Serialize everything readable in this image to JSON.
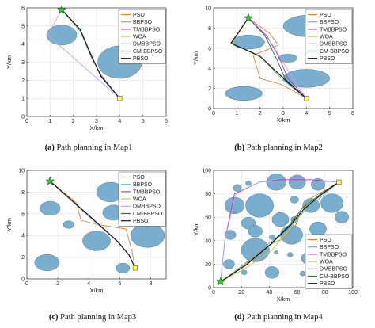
{
  "legend_labels": [
    "PSO",
    "BBPSO",
    "TMBBPSO",
    "WOA",
    "DMBBPSO",
    "CM-BBPSO",
    "PBSO"
  ],
  "colors": {
    "PSO": "#d9823b",
    "BBPSO": "#5ab4c7",
    "TMBBPSO": "#b13bbf",
    "WOA": "#c5c84a",
    "DMBBPSO": "#b9a9e3",
    "CM-BBPSO": "#356b3c",
    "PBSO": "#111111",
    "obstacle": "#7aaecf",
    "obstacle_edge": "#4f7c99",
    "start": "#33cc33",
    "goal": "#ffff55"
  },
  "start_icon": "green-star",
  "goal_icon": "yellow-square",
  "chart_data": [
    {
      "type": "line",
      "caption_letter": "(a)",
      "caption_text": " Path planning in Map1",
      "xlabel": "X/km",
      "ylabel": "Y/km",
      "xlim": [
        0,
        6
      ],
      "ylim": [
        0,
        6
      ],
      "xticks": [
        0,
        1,
        2,
        3,
        4,
        5,
        6
      ],
      "yticks": [
        0,
        1,
        2,
        3,
        4,
        5,
        6
      ],
      "grid": true,
      "legend": "top-right",
      "start": [
        1.5,
        5.9
      ],
      "goal": [
        4,
        1
      ],
      "obstacles": [
        {
          "cx": 1.5,
          "cy": 4.5,
          "rx": 0.65,
          "ry": 0.55
        },
        {
          "cx": 4.0,
          "cy": 3.0,
          "rx": 0.95,
          "ry": 0.9
        }
      ],
      "series": [
        {
          "name": "PSO",
          "points": [
            [
              1.5,
              5.9
            ],
            [
              2.3,
              4.8
            ],
            [
              2.8,
              3.3
            ],
            [
              3.2,
              2.2
            ],
            [
              4,
              1
            ]
          ]
        },
        {
          "name": "BBPSO",
          "points": [
            [
              1.5,
              5.9
            ],
            [
              2.3,
              4.7
            ],
            [
              2.8,
              3.2
            ],
            [
              3.2,
              2.3
            ],
            [
              4,
              1
            ]
          ]
        },
        {
          "name": "TMBBPSO",
          "points": [
            [
              1.5,
              5.9
            ],
            [
              2.3,
              4.8
            ],
            [
              2.8,
              3.25
            ],
            [
              3.2,
              2.25
            ],
            [
              4,
              1
            ]
          ]
        },
        {
          "name": "WOA",
          "points": [
            [
              1.5,
              5.9
            ],
            [
              2.3,
              4.75
            ],
            [
              2.8,
              3.3
            ],
            [
              3.2,
              2.2
            ],
            [
              4,
              1
            ]
          ]
        },
        {
          "name": "DMBBPSO",
          "points": [
            [
              1.5,
              5.9
            ],
            [
              0.9,
              4.5
            ],
            [
              4,
              1
            ]
          ]
        },
        {
          "name": "CM-BBPSO",
          "points": [
            [
              1.5,
              5.9
            ],
            [
              2.3,
              4.8
            ],
            [
              2.8,
              3.3
            ],
            [
              3.2,
              2.2
            ],
            [
              4,
              1
            ]
          ]
        },
        {
          "name": "PBSO",
          "points": [
            [
              1.5,
              5.9
            ],
            [
              2.3,
              4.8
            ],
            [
              2.8,
              3.3
            ],
            [
              3.2,
              2.2
            ],
            [
              4,
              1
            ]
          ]
        }
      ]
    },
    {
      "type": "line",
      "caption_letter": "(b)",
      "caption_text": " Path planning in Map2",
      "xlabel": "X/km",
      "ylabel": "Y/km",
      "xlim": [
        0,
        6
      ],
      "ylim": [
        0,
        10
      ],
      "xticks": [
        0,
        1,
        2,
        3,
        4,
        5,
        6
      ],
      "yticks": [
        0,
        2,
        4,
        6,
        8,
        10
      ],
      "grid": true,
      "legend": "top-right",
      "start": [
        1.5,
        9
      ],
      "goal": [
        4,
        1
      ],
      "obstacles": [
        {
          "cx": 4.2,
          "cy": 8.2,
          "rx": 1.2,
          "ry": 1.1
        },
        {
          "cx": 1.5,
          "cy": 6.6,
          "rx": 0.7,
          "ry": 0.7
        },
        {
          "cx": 3.2,
          "cy": 5.0,
          "rx": 0.4,
          "ry": 0.4
        },
        {
          "cx": 4.0,
          "cy": 3.0,
          "rx": 1.0,
          "ry": 0.9
        },
        {
          "cx": 1.3,
          "cy": 1.5,
          "rx": 0.8,
          "ry": 0.7
        }
      ],
      "series": [
        {
          "name": "PSO",
          "points": [
            [
              1.5,
              9
            ],
            [
              2.4,
              7.5
            ],
            [
              2.8,
              6.3
            ],
            [
              1.7,
              5.3
            ],
            [
              2.0,
              3.0
            ],
            [
              2.9,
              2.4
            ],
            [
              3.4,
              1.8
            ],
            [
              4,
              1
            ]
          ]
        },
        {
          "name": "BBPSO",
          "points": [
            [
              1.5,
              9
            ],
            [
              0.8,
              6.5
            ],
            [
              2.0,
              5.2
            ],
            [
              3.0,
              2.8
            ],
            [
              4,
              1
            ]
          ]
        },
        {
          "name": "TMBBPSO",
          "points": [
            [
              1.5,
              9
            ],
            [
              2.3,
              7.2
            ],
            [
              2.8,
              5.2
            ],
            [
              3.2,
              3.0
            ],
            [
              4,
              1
            ]
          ]
        },
        {
          "name": "WOA",
          "points": [
            [
              1.5,
              9
            ],
            [
              0.8,
              6.5
            ],
            [
              2.0,
              5.1
            ],
            [
              3.1,
              2.9
            ],
            [
              4,
              1
            ]
          ]
        },
        {
          "name": "DMBBPSO",
          "points": [
            [
              1.5,
              9
            ],
            [
              2.5,
              6.5
            ],
            [
              3.3,
              3.4
            ],
            [
              4,
              1
            ]
          ]
        },
        {
          "name": "CM-BBPSO",
          "points": [
            [
              1.5,
              9
            ],
            [
              2.2,
              7.3
            ],
            [
              2.7,
              5.0
            ],
            [
              3.1,
              2.9
            ],
            [
              4,
              1
            ]
          ]
        },
        {
          "name": "PBSO",
          "points": [
            [
              1.5,
              9
            ],
            [
              0.75,
              6.5
            ],
            [
              2.0,
              5.2
            ],
            [
              3.1,
              2.8
            ],
            [
              4,
              1
            ]
          ]
        }
      ]
    },
    {
      "type": "line",
      "caption_letter": "(c)",
      "caption_text": " Path planning in Map3",
      "xlabel": "X/km",
      "ylabel": "Y/km",
      "xlim": [
        0,
        9
      ],
      "ylim": [
        0,
        10
      ],
      "xticks": [
        0,
        2,
        4,
        6,
        8
      ],
      "yticks": [
        0,
        2,
        4,
        6,
        8,
        10
      ],
      "grid": true,
      "legend": "top-right",
      "start": [
        1.5,
        9
      ],
      "goal": [
        7,
        1
      ],
      "obstacles": [
        {
          "cx": 1.5,
          "cy": 6.5,
          "rx": 0.65,
          "ry": 0.65
        },
        {
          "cx": 5.4,
          "cy": 8.0,
          "rx": 0.9,
          "ry": 0.9
        },
        {
          "cx": 2.7,
          "cy": 5.0,
          "rx": 0.35,
          "ry": 0.35
        },
        {
          "cx": 5.6,
          "cy": 6.1,
          "rx": 0.7,
          "ry": 0.7
        },
        {
          "cx": 4.5,
          "cy": 3.5,
          "rx": 0.9,
          "ry": 0.9
        },
        {
          "cx": 7.8,
          "cy": 4.0,
          "rx": 1.1,
          "ry": 1.1
        },
        {
          "cx": 1.3,
          "cy": 1.5,
          "rx": 0.8,
          "ry": 0.75
        },
        {
          "cx": 6.2,
          "cy": 1.0,
          "rx": 0.45,
          "ry": 0.45
        }
      ],
      "series": [
        {
          "name": "PSO",
          "points": [
            [
              1.5,
              9
            ],
            [
              3.2,
              7.0
            ],
            [
              3.5,
              5.4
            ],
            [
              4.6,
              5.0
            ],
            [
              6.4,
              4.6
            ],
            [
              6.8,
              2.5
            ],
            [
              7,
              1
            ]
          ]
        },
        {
          "name": "BBPSO",
          "points": [
            [
              1.5,
              9
            ],
            [
              4.2,
              5.6
            ],
            [
              5.9,
              3.4
            ],
            [
              6.6,
              2.2
            ],
            [
              7,
              1
            ]
          ]
        },
        {
          "name": "TMBBPSO",
          "points": [
            [
              1.5,
              9
            ],
            [
              4.1,
              5.7
            ],
            [
              5.8,
              3.5
            ],
            [
              6.6,
              2.2
            ],
            [
              7,
              1
            ]
          ]
        },
        {
          "name": "WOA",
          "points": [
            [
              1.5,
              9
            ],
            [
              4.2,
              5.5
            ],
            [
              5.9,
              3.4
            ],
            [
              6.6,
              2.2
            ],
            [
              7,
              1
            ]
          ]
        },
        {
          "name": "DMBBPSO",
          "points": [
            [
              1.5,
              9
            ],
            [
              4.1,
              5.6
            ],
            [
              5.8,
              3.5
            ],
            [
              6.6,
              2.2
            ],
            [
              7,
              1
            ]
          ]
        },
        {
          "name": "CM-BBPSO",
          "points": [
            [
              1.5,
              9
            ],
            [
              4.2,
              5.6
            ],
            [
              5.9,
              3.4
            ],
            [
              6.6,
              2.2
            ],
            [
              7,
              1
            ]
          ]
        },
        {
          "name": "PBSO",
          "points": [
            [
              1.5,
              9
            ],
            [
              4.2,
              5.6
            ],
            [
              5.9,
              3.4
            ],
            [
              6.6,
              2.2
            ],
            [
              7,
              1
            ]
          ]
        }
      ]
    },
    {
      "type": "line",
      "caption_letter": "(d)",
      "caption_text": " Path planning in Map4",
      "xlabel": "X/km",
      "ylabel": "Y/km",
      "xlim": [
        0,
        100
      ],
      "ylim": [
        0,
        100
      ],
      "xticks": [
        0,
        20,
        40,
        60,
        80,
        100
      ],
      "yticks": [
        0,
        20,
        40,
        60,
        80,
        100
      ],
      "grid": true,
      "legend": "bottom-right",
      "start": [
        5,
        5
      ],
      "goal": [
        90,
        90
      ],
      "obstacles": [
        {
          "cx": 17,
          "cy": 85,
          "rx": 3,
          "ry": 3
        },
        {
          "cx": 25,
          "cy": 89,
          "rx": 2,
          "ry": 2
        },
        {
          "cx": 45,
          "cy": 90,
          "rx": 7,
          "ry": 7
        },
        {
          "cx": 60,
          "cy": 90,
          "rx": 6,
          "ry": 6
        },
        {
          "cx": 75,
          "cy": 88,
          "rx": 5,
          "ry": 5
        },
        {
          "cx": 15,
          "cy": 70,
          "rx": 7,
          "ry": 7
        },
        {
          "cx": 33,
          "cy": 70,
          "rx": 10,
          "ry": 10
        },
        {
          "cx": 58,
          "cy": 75,
          "rx": 3,
          "ry": 3
        },
        {
          "cx": 70,
          "cy": 70,
          "rx": 6,
          "ry": 6
        },
        {
          "cx": 85,
          "cy": 72,
          "rx": 8,
          "ry": 8
        },
        {
          "cx": 25,
          "cy": 55,
          "rx": 5,
          "ry": 5
        },
        {
          "cx": 48,
          "cy": 58,
          "rx": 6,
          "ry": 6
        },
        {
          "cx": 58,
          "cy": 58,
          "rx": 2.5,
          "ry": 2.5
        },
        {
          "cx": 92,
          "cy": 60,
          "rx": 5,
          "ry": 5
        },
        {
          "cx": 30,
          "cy": 48,
          "rx": 5,
          "ry": 5
        },
        {
          "cx": 42,
          "cy": 43,
          "rx": 2,
          "ry": 2
        },
        {
          "cx": 56,
          "cy": 45,
          "rx": 8,
          "ry": 8
        },
        {
          "cx": 75,
          "cy": 50,
          "rx": 6,
          "ry": 6
        },
        {
          "cx": 12,
          "cy": 45,
          "rx": 4,
          "ry": 4
        },
        {
          "cx": 30,
          "cy": 32,
          "rx": 10,
          "ry": 10
        },
        {
          "cx": 55,
          "cy": 28,
          "rx": 2,
          "ry": 2
        },
        {
          "cx": 68,
          "cy": 25,
          "rx": 5,
          "ry": 5
        },
        {
          "cx": 85,
          "cy": 30,
          "rx": 9,
          "ry": 9
        },
        {
          "cx": 11,
          "cy": 20,
          "rx": 4,
          "ry": 4
        },
        {
          "cx": 22,
          "cy": 13,
          "rx": 2,
          "ry": 2
        },
        {
          "cx": 42,
          "cy": 13,
          "rx": 5,
          "ry": 5
        },
        {
          "cx": 64,
          "cy": 12,
          "rx": 2,
          "ry": 2
        },
        {
          "cx": 45,
          "cy": 30,
          "rx": 1.5,
          "ry": 1.5
        }
      ],
      "series": [
        {
          "name": "PSO",
          "points": [
            [
              5,
              5
            ],
            [
              25,
              22
            ],
            [
              38,
              35
            ],
            [
              50,
              42
            ],
            [
              60,
              55
            ],
            [
              62,
              65
            ],
            [
              68,
              75
            ],
            [
              80,
              83
            ],
            [
              90,
              90
            ]
          ]
        },
        {
          "name": "BBPSO",
          "points": [
            [
              5,
              5
            ],
            [
              22,
              20
            ],
            [
              40,
              38
            ],
            [
              55,
              52
            ],
            [
              65,
              65
            ],
            [
              75,
              75
            ],
            [
              90,
              90
            ]
          ]
        },
        {
          "name": "TMBBPSO",
          "points": [
            [
              5,
              5
            ],
            [
              8,
              40
            ],
            [
              15,
              80
            ],
            [
              33,
              90
            ],
            [
              50,
              92
            ],
            [
              70,
              92
            ],
            [
              90,
              90
            ]
          ]
        },
        {
          "name": "WOA",
          "points": [
            [
              5,
              5
            ],
            [
              25,
              18
            ],
            [
              42,
              32
            ],
            [
              55,
              50
            ],
            [
              65,
              68
            ],
            [
              78,
              80
            ],
            [
              90,
              90
            ]
          ]
        },
        {
          "name": "DMBBPSO",
          "points": [
            [
              5,
              5
            ],
            [
              8,
              40
            ],
            [
              16,
              80
            ],
            [
              33,
              90
            ],
            [
              50,
              91
            ],
            [
              70,
              91
            ],
            [
              90,
              90
            ]
          ]
        },
        {
          "name": "CM-BBPSO",
          "points": [
            [
              5,
              5
            ],
            [
              24,
              20
            ],
            [
              40,
              36
            ],
            [
              54,
              53
            ],
            [
              64,
              68
            ],
            [
              77,
              80
            ],
            [
              90,
              90
            ]
          ]
        },
        {
          "name": "PBSO",
          "points": [
            [
              5,
              5
            ],
            [
              23,
              19
            ],
            [
              41,
              37
            ],
            [
              55,
              53
            ],
            [
              65,
              67
            ],
            [
              77,
              79
            ],
            [
              90,
              90
            ]
          ]
        }
      ]
    }
  ]
}
